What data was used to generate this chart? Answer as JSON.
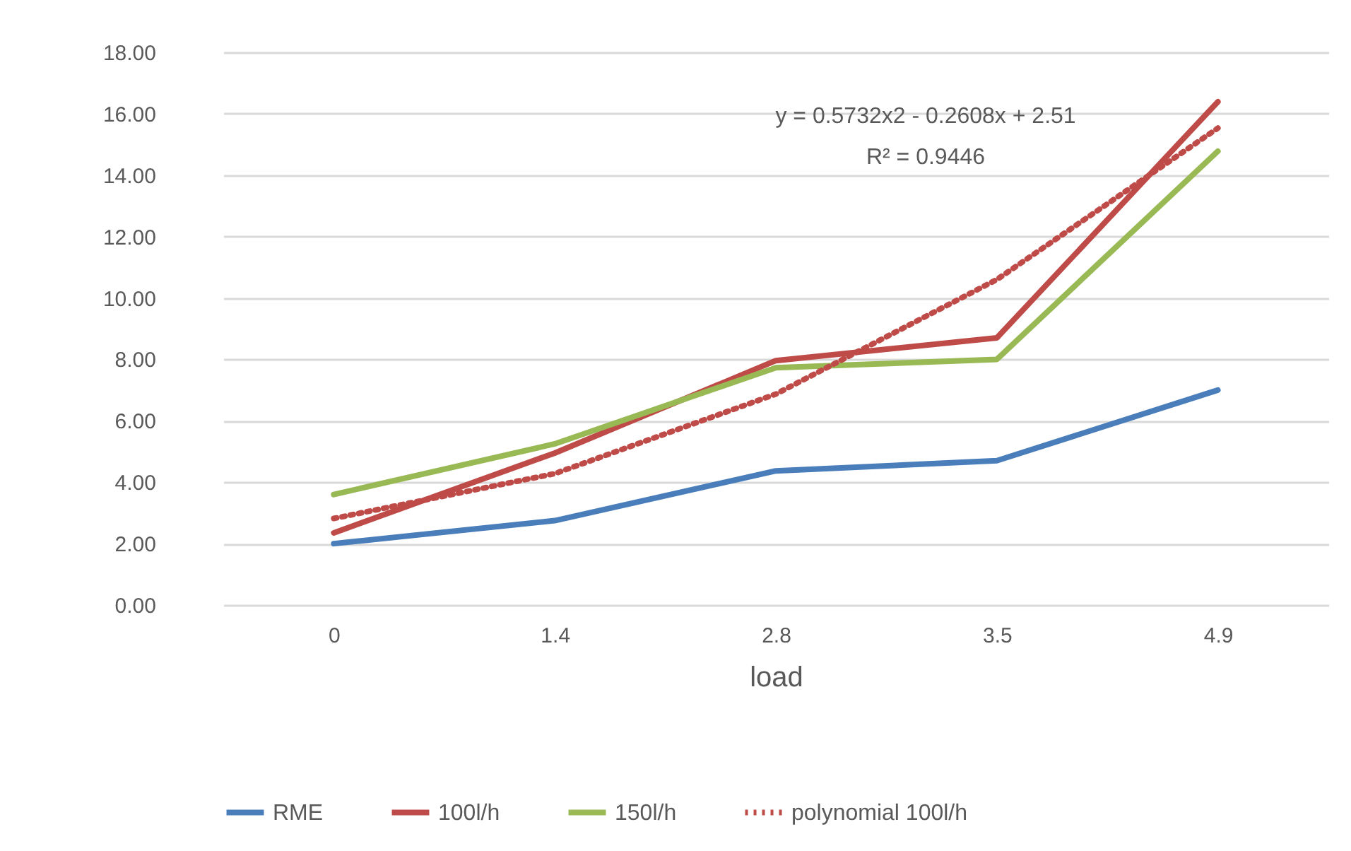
{
  "chart_data": {
    "type": "line",
    "xlabel": "load",
    "categories": [
      "0",
      "1.4",
      "2.8",
      "3.5",
      "4.9"
    ],
    "series": [
      {
        "name": "RME",
        "color": "#4a7ebb",
        "line_style": "solid",
        "values": [
          2.0,
          2.75,
          4.37,
          4.7,
          7.0
        ]
      },
      {
        "name": "100l/h",
        "color": "#be4b48",
        "line_style": "solid",
        "values": [
          2.35,
          4.95,
          7.96,
          8.7,
          16.39
        ]
      },
      {
        "name": "150l/h",
        "color": "#98b954",
        "line_style": "solid",
        "values": [
          3.6,
          5.25,
          7.73,
          8.0,
          14.78
        ]
      },
      {
        "name": "polynomial 100l/h",
        "color": "#be4b48",
        "line_style": "dotted",
        "values": [
          2.82,
          4.28,
          6.87,
          10.6,
          15.53
        ]
      }
    ],
    "ylim": [
      0,
      18
    ],
    "yticks": [
      {
        "value": 0,
        "label": "0.00"
      },
      {
        "value": 2,
        "label": "2.00"
      },
      {
        "value": 4,
        "label": "4.00"
      },
      {
        "value": 6,
        "label": "6.00"
      },
      {
        "value": 8,
        "label": "8.00"
      },
      {
        "value": 10,
        "label": "10.00"
      },
      {
        "value": 12,
        "label": "12.00"
      },
      {
        "value": 14,
        "label": "14.00"
      },
      {
        "value": 16,
        "label": "16.00"
      },
      {
        "value": 18,
        "label": "18.00"
      }
    ],
    "grid": "y",
    "legend": "bottom",
    "marker": "none",
    "annotations": [
      "y = 0.5732x2 - 0.2608x + 2.51",
      "R² = 0.9446"
    ]
  }
}
